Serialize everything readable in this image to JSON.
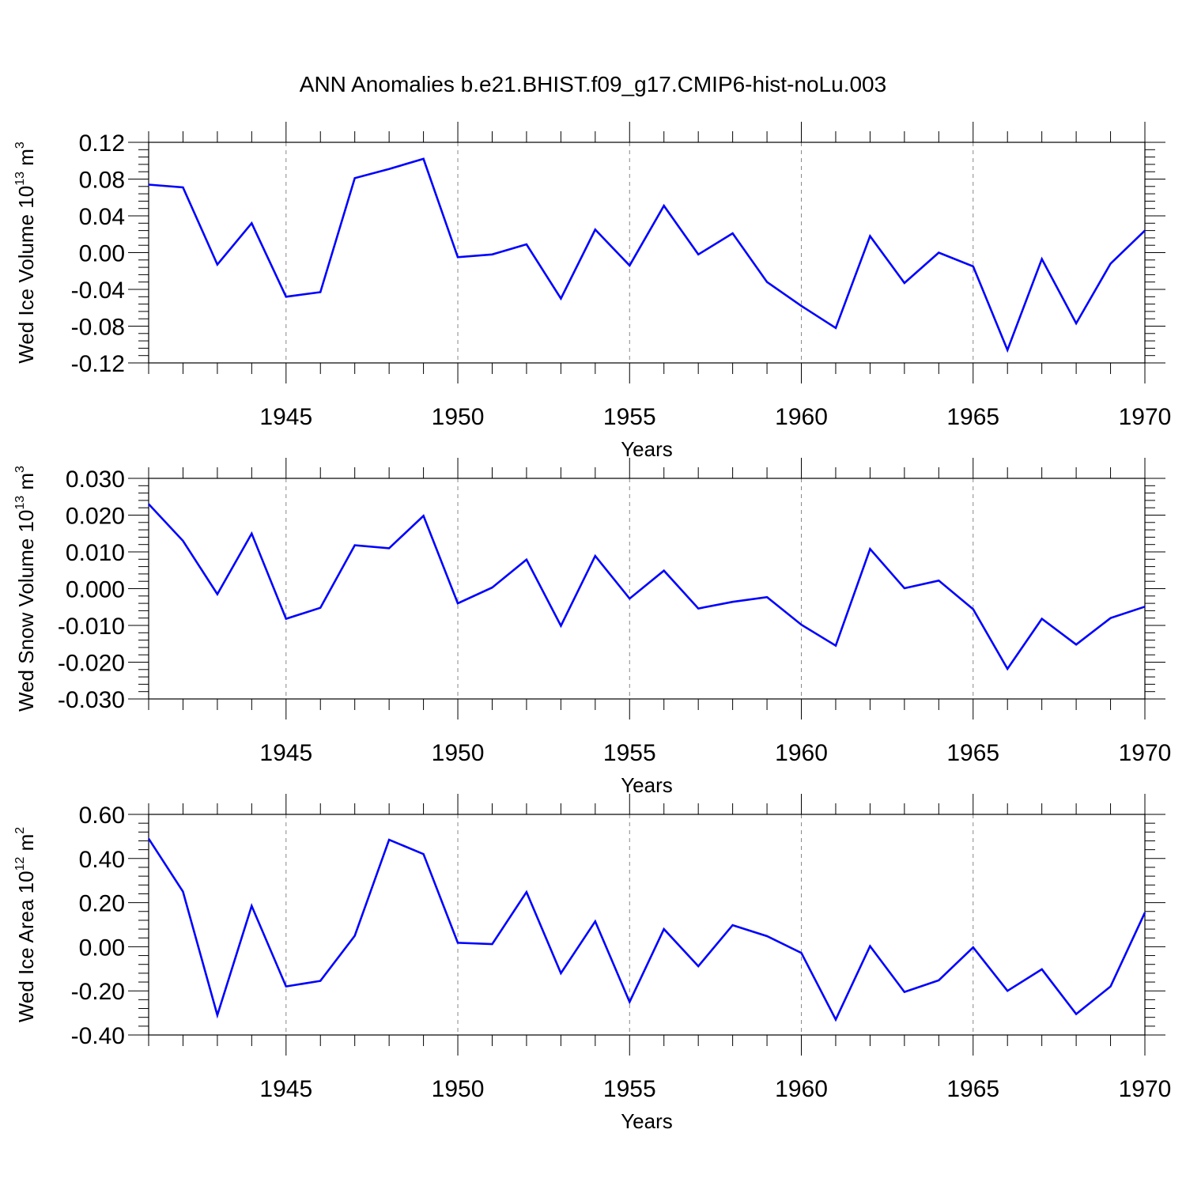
{
  "title": "ANN Anomalies b.e21.BHIST.f09_g17.CMIP6-hist-noLu.003",
  "colors": {
    "series": "#0000ff",
    "axis": "#000000",
    "grid": "#888888",
    "background": "#ffffff"
  },
  "chart_data": [
    {
      "type": "line",
      "title": "ANN Anomalies b.e21.BHIST.f09_g17.CMIP6-hist-noLu.003",
      "xlabel": "Years",
      "ylabel": {
        "name": "Wed Ice Volume",
        "base": "10",
        "exp": "13",
        "unit": "m",
        "unit_exp": "3"
      },
      "xlim": [
        1941,
        1970
      ],
      "ylim": [
        -0.12,
        0.12
      ],
      "xticks": [
        "1945",
        "1950",
        "1955",
        "1960",
        "1965",
        "1970"
      ],
      "yticks": [
        "0.12",
        "0.08",
        "0.04",
        "0.00",
        "-0.04",
        "-0.08",
        "-0.12"
      ],
      "grid": "vertical dashed at major x ticks",
      "x": [
        1941,
        1942,
        1943,
        1944,
        1945,
        1946,
        1947,
        1948,
        1949,
        1950,
        1951,
        1952,
        1953,
        1954,
        1955,
        1956,
        1957,
        1958,
        1959,
        1960,
        1961,
        1962,
        1963,
        1964,
        1965,
        1966,
        1967,
        1968,
        1969,
        1970
      ],
      "series": [
        {
          "values": [
            0.074,
            0.071,
            -0.013,
            0.032,
            -0.048,
            -0.043,
            0.081,
            0.091,
            0.102,
            -0.005,
            -0.002,
            0.009,
            -0.05,
            0.025,
            -0.014,
            0.051,
            -0.002,
            0.021,
            -0.032,
            -0.058,
            -0.082,
            0.018,
            -0.033,
            0.0,
            -0.015,
            -0.106,
            -0.007,
            -0.077,
            -0.012,
            0.024
          ]
        }
      ]
    },
    {
      "type": "line",
      "xlabel": "Years",
      "ylabel": {
        "name": "Wed Snow Volume",
        "base": "10",
        "exp": "13",
        "unit": "m",
        "unit_exp": "3"
      },
      "xlim": [
        1941,
        1970
      ],
      "ylim": [
        -0.03,
        0.03
      ],
      "xticks": [
        "1945",
        "1950",
        "1955",
        "1960",
        "1965",
        "1970"
      ],
      "yticks": [
        "0.030",
        "0.020",
        "0.010",
        "0.000",
        "-0.010",
        "-0.020",
        "-0.030"
      ],
      "grid": "vertical dashed at major x ticks",
      "x": [
        1941,
        1942,
        1943,
        1944,
        1945,
        1946,
        1947,
        1948,
        1949,
        1950,
        1951,
        1952,
        1953,
        1954,
        1955,
        1956,
        1957,
        1958,
        1959,
        1960,
        1961,
        1962,
        1963,
        1964,
        1965,
        1966,
        1967,
        1968,
        1969,
        1970
      ],
      "series": [
        {
          "values": [
            0.023,
            0.013,
            -0.0015,
            0.015,
            -0.0082,
            -0.0052,
            0.0118,
            0.011,
            0.0198,
            -0.004,
            0.0003,
            0.0079,
            -0.0101,
            0.0089,
            -0.0027,
            0.0049,
            -0.0054,
            -0.0036,
            -0.0023,
            -0.0098,
            -0.0155,
            0.0108,
            0.0001,
            0.0022,
            -0.0056,
            -0.0218,
            -0.0082,
            -0.0152,
            -0.008,
            -0.0049
          ]
        }
      ]
    },
    {
      "type": "line",
      "xlabel": "Years",
      "ylabel": {
        "name": "Wed Ice Area",
        "base": "10",
        "exp": "12",
        "unit": "m",
        "unit_exp": "2"
      },
      "xlim": [
        1941,
        1970
      ],
      "ylim": [
        -0.4,
        0.6
      ],
      "xticks": [
        "1945",
        "1950",
        "1955",
        "1960",
        "1965",
        "1970"
      ],
      "yticks": [
        "0.60",
        "0.40",
        "0.20",
        "0.00",
        "-0.20",
        "-0.40"
      ],
      "grid": "vertical dashed at major x ticks",
      "x": [
        1941,
        1942,
        1943,
        1944,
        1945,
        1946,
        1947,
        1948,
        1949,
        1950,
        1951,
        1952,
        1953,
        1954,
        1955,
        1956,
        1957,
        1958,
        1959,
        1960,
        1961,
        1962,
        1963,
        1964,
        1965,
        1966,
        1967,
        1968,
        1969,
        1970
      ],
      "series": [
        {
          "values": [
            0.49,
            0.25,
            -0.31,
            0.185,
            -0.18,
            -0.155,
            0.05,
            0.485,
            0.42,
            0.018,
            0.012,
            0.248,
            -0.12,
            0.115,
            -0.25,
            0.08,
            -0.088,
            0.098,
            0.048,
            -0.028,
            -0.33,
            0.003,
            -0.205,
            -0.152,
            -0.003,
            -0.2,
            -0.102,
            -0.305,
            -0.18,
            0.155
          ]
        }
      ]
    }
  ]
}
